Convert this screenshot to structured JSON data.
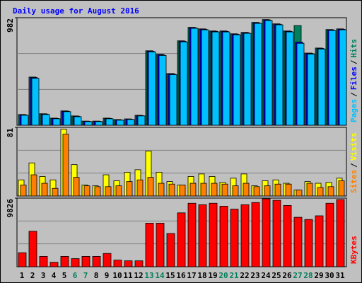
{
  "chart_data": {
    "type": "bar",
    "title": "Daily usage for August 2016",
    "separator": "/",
    "categories": [
      "1",
      "2",
      "3",
      "4",
      "5",
      "6",
      "7",
      "8",
      "9",
      "10",
      "11",
      "12",
      "13",
      "14",
      "15",
      "16",
      "17",
      "18",
      "19",
      "20",
      "21",
      "22",
      "23",
      "24",
      "25",
      "26",
      "27",
      "28",
      "29",
      "30",
      "31"
    ],
    "category_colors": [
      "#000000",
      "#000000",
      "#000000",
      "#000000",
      "#000000",
      "#00805c",
      "#00805c",
      "#000000",
      "#000000",
      "#000000",
      "#000000",
      "#000000",
      "#00805c",
      "#00805c",
      "#000000",
      "#000000",
      "#000000",
      "#000000",
      "#000000",
      "#00805c",
      "#00805c",
      "#000000",
      "#000000",
      "#000000",
      "#000000",
      "#000000",
      "#00805c",
      "#00805c",
      "#000000",
      "#000000",
      "#000000"
    ],
    "panels": [
      {
        "ylim": [
          0,
          982
        ],
        "yticks": [
          982
        ],
        "series": [
          {
            "name": "Pages",
            "color": "#00c0ff",
            "values": [
              91,
              429,
              98,
              59,
              124,
              78,
              33,
              33,
              59,
              46,
              52,
              85,
              670,
              637,
              462,
              761,
              885,
              871,
              852,
              852,
              826,
              839,
              930,
              956,
              917,
              852,
              748,
              650,
              696,
              865,
              871
            ]
          },
          {
            "name": "Files",
            "color": "#0000ff",
            "values": [
              95,
              435,
              102,
              62,
              128,
              82,
              36,
              36,
              62,
              49,
              55,
              88,
              676,
              643,
              468,
              767,
              890,
              876,
              857,
              857,
              831,
              844,
              935,
              961,
              922,
              857,
              760,
              655,
              701,
              870,
              876
            ]
          },
          {
            "name": "Hits",
            "color": "#00805c",
            "values": [
              98,
              440,
              105,
              65,
              131,
              85,
              38,
              38,
              65,
              52,
              58,
              91,
              680,
              648,
              472,
              771,
              894,
              880,
              861,
              861,
              835,
              848,
              939,
              965,
              926,
              861,
              910,
              659,
              705,
              874,
              880
            ]
          }
        ]
      },
      {
        "ylim": [
          0,
          81
        ],
        "yticks": [
          81
        ],
        "series": [
          {
            "name": "Sites",
            "color": "#ff8000",
            "values": [
              13,
              25,
              15,
              9,
              73,
              22,
              12,
              11,
              11,
              12,
              17,
              19,
              22,
              15,
              14,
              13,
              15,
              15,
              15,
              14,
              12,
              15,
              11,
              12,
              14,
              14,
              7,
              15,
              10,
              11,
              18
            ]
          },
          {
            "name": "Visits",
            "color": "#ffff00",
            "values": [
              19,
              39,
              23,
              19,
              79,
              37,
              13,
              12,
              25,
              18,
              28,
              31,
              53,
              28,
              17,
              13,
              23,
              26,
              23,
              16,
              21,
              26,
              12,
              18,
              19,
              15,
              7,
              17,
              15,
              16,
              21
            ]
          }
        ]
      },
      {
        "ylim": [
          0,
          9826
        ],
        "yticks": [
          9826
        ],
        "series": [
          {
            "name": "KBytes",
            "color": "#ff0000",
            "values": [
              2008,
              5073,
              1480,
              634,
              1480,
              1163,
              1480,
              1480,
              1903,
              951,
              846,
              846,
              6236,
              6236,
              4757,
              7716,
              9090,
              8879,
              9090,
              8668,
              8245,
              8879,
              9196,
              9725,
              9513,
              8773,
              7082,
              6765,
              7293,
              9090,
              9619
            ]
          }
        ]
      }
    ]
  }
}
